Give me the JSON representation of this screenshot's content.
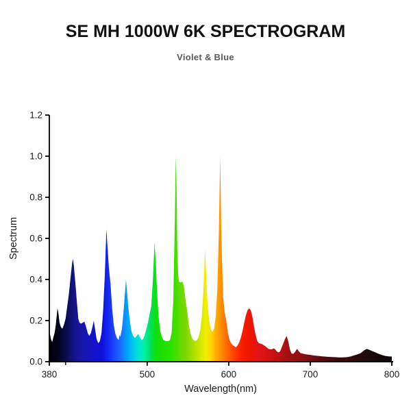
{
  "title": "SE MH 1000W 6K SPECTROGRAM",
  "subtitle": "Violet & Blue",
  "chart_data": {
    "type": "area",
    "title": "SE MH 1000W 6K SPECTROGRAM",
    "subtitle": "Violet & Blue",
    "xlabel": "Wavelength(nm)",
    "ylabel": "Spectrum",
    "xlim": [
      380,
      800
    ],
    "ylim": [
      0.0,
      1.2
    ],
    "x_major_ticks": [
      380,
      500,
      600,
      700,
      800
    ],
    "x_minor_ticks": [
      400
    ],
    "y_ticks": [
      0.0,
      0.2,
      0.4,
      0.6,
      0.8,
      1.0,
      1.2
    ],
    "grid": false,
    "legend": false,
    "fill_style": "spectral-wavelength-gradient",
    "main_peaks": [
      {
        "nm": 390,
        "value": 0.26
      },
      {
        "nm": 409,
        "value": 0.5
      },
      {
        "nm": 435,
        "value": 0.2
      },
      {
        "nm": 450,
        "value": 0.645
      },
      {
        "nm": 474,
        "value": 0.4
      },
      {
        "nm": 509,
        "value": 0.58
      },
      {
        "nm": 535,
        "value": 1.0
      },
      {
        "nm": 543,
        "value": 0.39
      },
      {
        "nm": 571,
        "value": 0.55
      },
      {
        "nm": 590,
        "value": 1.0
      },
      {
        "nm": 625,
        "value": 0.26
      },
      {
        "nm": 671,
        "value": 0.125
      },
      {
        "nm": 770,
        "value": 0.062
      }
    ],
    "points": [
      [
        380,
        0.15
      ],
      [
        382,
        0.11
      ],
      [
        383.5,
        0.095
      ],
      [
        385,
        0.12
      ],
      [
        386.5,
        0.14
      ],
      [
        388,
        0.18
      ],
      [
        390,
        0.26
      ],
      [
        391,
        0.24
      ],
      [
        392.5,
        0.19
      ],
      [
        394,
        0.17
      ],
      [
        396,
        0.16
      ],
      [
        398,
        0.18
      ],
      [
        400,
        0.21
      ],
      [
        402,
        0.27
      ],
      [
        404,
        0.33
      ],
      [
        406,
        0.41
      ],
      [
        408,
        0.48
      ],
      [
        409,
        0.5
      ],
      [
        410,
        0.47
      ],
      [
        412,
        0.38
      ],
      [
        414,
        0.28
      ],
      [
        415.5,
        0.21
      ],
      [
        417,
        0.19
      ],
      [
        419,
        0.185
      ],
      [
        421,
        0.19
      ],
      [
        423,
        0.195
      ],
      [
        425,
        0.17
      ],
      [
        427,
        0.14
      ],
      [
        429,
        0.125
      ],
      [
        431,
        0.14
      ],
      [
        433,
        0.17
      ],
      [
        434.5,
        0.2
      ],
      [
        436,
        0.16
      ],
      [
        438,
        0.11
      ],
      [
        440,
        0.09
      ],
      [
        442,
        0.1
      ],
      [
        444,
        0.14
      ],
      [
        446,
        0.25
      ],
      [
        448,
        0.42
      ],
      [
        450,
        0.645
      ],
      [
        451.5,
        0.55
      ],
      [
        453,
        0.46
      ],
      [
        455,
        0.38
      ],
      [
        457,
        0.26
      ],
      [
        459,
        0.18
      ],
      [
        461,
        0.135
      ],
      [
        463,
        0.115
      ],
      [
        465,
        0.105
      ],
      [
        466,
        0.13
      ],
      [
        467,
        0.12
      ],
      [
        469,
        0.16
      ],
      [
        471,
        0.24
      ],
      [
        473,
        0.345
      ],
      [
        474,
        0.4
      ],
      [
        475.5,
        0.33
      ],
      [
        477,
        0.26
      ],
      [
        479,
        0.19
      ],
      [
        481,
        0.145
      ],
      [
        483,
        0.125
      ],
      [
        485,
        0.115
      ],
      [
        487,
        0.125
      ],
      [
        489,
        0.135
      ],
      [
        491,
        0.12
      ],
      [
        493,
        0.105
      ],
      [
        495,
        0.11
      ],
      [
        497,
        0.13
      ],
      [
        499,
        0.16
      ],
      [
        501,
        0.19
      ],
      [
        503,
        0.23
      ],
      [
        505,
        0.27
      ],
      [
        507,
        0.4
      ],
      [
        509,
        0.58
      ],
      [
        510.5,
        0.48
      ],
      [
        512,
        0.35
      ],
      [
        514,
        0.22
      ],
      [
        516,
        0.15
      ],
      [
        518,
        0.12
      ],
      [
        520,
        0.105
      ],
      [
        523,
        0.1
      ],
      [
        526,
        0.1
      ],
      [
        528,
        0.105
      ],
      [
        530,
        0.14
      ],
      [
        532,
        0.3
      ],
      [
        534,
        0.7
      ],
      [
        535,
        1.0
      ],
      [
        536,
        0.85
      ],
      [
        537,
        0.55
      ],
      [
        538,
        0.42
      ],
      [
        539,
        0.39
      ],
      [
        541,
        0.385
      ],
      [
        543,
        0.39
      ],
      [
        545,
        0.37
      ],
      [
        547,
        0.3
      ],
      [
        549,
        0.25
      ],
      [
        551,
        0.18
      ],
      [
        553,
        0.14
      ],
      [
        555,
        0.115
      ],
      [
        557,
        0.105
      ],
      [
        559,
        0.1
      ],
      [
        561,
        0.105
      ],
      [
        563,
        0.12
      ],
      [
        565,
        0.15
      ],
      [
        567,
        0.22
      ],
      [
        569,
        0.35
      ],
      [
        571,
        0.55
      ],
      [
        572.5,
        0.4
      ],
      [
        574,
        0.28
      ],
      [
        576,
        0.2
      ],
      [
        578,
        0.16
      ],
      [
        580,
        0.145
      ],
      [
        582,
        0.16
      ],
      [
        584,
        0.22
      ],
      [
        586,
        0.35
      ],
      [
        588,
        0.65
      ],
      [
        589.5,
        1.0
      ],
      [
        591,
        0.6
      ],
      [
        593,
        0.32
      ],
      [
        595,
        0.24
      ],
      [
        597,
        0.2
      ],
      [
        599,
        0.14
      ],
      [
        601,
        0.105
      ],
      [
        603,
        0.09
      ],
      [
        605,
        0.08
      ],
      [
        607,
        0.075
      ],
      [
        609,
        0.07
      ],
      [
        611,
        0.08
      ],
      [
        613,
        0.095
      ],
      [
        615,
        0.12
      ],
      [
        617,
        0.15
      ],
      [
        619,
        0.19
      ],
      [
        621,
        0.225
      ],
      [
        623,
        0.25
      ],
      [
        625,
        0.26
      ],
      [
        627,
        0.25
      ],
      [
        629,
        0.22
      ],
      [
        631,
        0.17
      ],
      [
        633,
        0.13
      ],
      [
        635,
        0.1
      ],
      [
        637,
        0.09
      ],
      [
        639,
        0.088
      ],
      [
        641,
        0.085
      ],
      [
        643,
        0.08
      ],
      [
        645,
        0.075
      ],
      [
        647,
        0.068
      ],
      [
        649,
        0.062
      ],
      [
        651,
        0.06
      ],
      [
        653,
        0.06
      ],
      [
        655,
        0.065
      ],
      [
        657,
        0.06
      ],
      [
        659,
        0.05
      ],
      [
        661,
        0.045
      ],
      [
        663,
        0.05
      ],
      [
        665,
        0.07
      ],
      [
        667,
        0.09
      ],
      [
        669,
        0.11
      ],
      [
        671,
        0.125
      ],
      [
        673,
        0.1
      ],
      [
        675,
        0.06
      ],
      [
        677,
        0.04
      ],
      [
        679,
        0.038
      ],
      [
        681,
        0.045
      ],
      [
        683,
        0.058
      ],
      [
        684,
        0.062
      ],
      [
        686,
        0.05
      ],
      [
        688,
        0.042
      ],
      [
        690,
        0.04
      ],
      [
        693,
        0.037
      ],
      [
        696,
        0.035
      ],
      [
        700,
        0.033
      ],
      [
        705,
        0.03
      ],
      [
        710,
        0.028
      ],
      [
        715,
        0.026
      ],
      [
        720,
        0.024
      ],
      [
        725,
        0.023
      ],
      [
        730,
        0.022
      ],
      [
        735,
        0.021
      ],
      [
        740,
        0.021
      ],
      [
        745,
        0.022
      ],
      [
        750,
        0.026
      ],
      [
        755,
        0.032
      ],
      [
        758,
        0.036
      ],
      [
        762,
        0.042
      ],
      [
        766,
        0.055
      ],
      [
        769,
        0.062
      ],
      [
        771,
        0.06
      ],
      [
        774,
        0.055
      ],
      [
        777,
        0.05
      ],
      [
        780,
        0.045
      ],
      [
        784,
        0.038
      ],
      [
        788,
        0.032
      ],
      [
        792,
        0.028
      ],
      [
        796,
        0.026
      ],
      [
        800,
        0.025
      ]
    ],
    "color_stops": [
      [
        380,
        "#000005"
      ],
      [
        390,
        "#04041c"
      ],
      [
        400,
        "#0a0a4a"
      ],
      [
        408,
        "#12127c"
      ],
      [
        415,
        "#16169a"
      ],
      [
        425,
        "#1717b4"
      ],
      [
        435,
        "#1212cc"
      ],
      [
        445,
        "#1010d8"
      ],
      [
        452,
        "#1228f0"
      ],
      [
        460,
        "#1c49ff"
      ],
      [
        468,
        "#1e6cff"
      ],
      [
        475,
        "#00a0ff"
      ],
      [
        482,
        "#00c3f0"
      ],
      [
        490,
        "#00e8d2"
      ],
      [
        497,
        "#00f0a0"
      ],
      [
        504,
        "#00e060"
      ],
      [
        510,
        "#0ee00e"
      ],
      [
        520,
        "#1fe000"
      ],
      [
        530,
        "#2ce000"
      ],
      [
        538,
        "#55dd00"
      ],
      [
        548,
        "#80d800"
      ],
      [
        558,
        "#b0e000"
      ],
      [
        566,
        "#d8e800"
      ],
      [
        572,
        "#f0f000"
      ],
      [
        578,
        "#ffd800"
      ],
      [
        584,
        "#ffae00"
      ],
      [
        590,
        "#ff9100"
      ],
      [
        596,
        "#ff7000"
      ],
      [
        603,
        "#ff5000"
      ],
      [
        610,
        "#ff3000"
      ],
      [
        618,
        "#f81b00"
      ],
      [
        626,
        "#ee1500"
      ],
      [
        634,
        "#e41414"
      ],
      [
        642,
        "#dc1414"
      ],
      [
        650,
        "#d01212"
      ],
      [
        660,
        "#c01010"
      ],
      [
        670,
        "#a81010"
      ],
      [
        680,
        "#961010"
      ],
      [
        690,
        "#8c1010"
      ],
      [
        700,
        "#750e0e"
      ],
      [
        715,
        "#5a0a0a"
      ],
      [
        730,
        "#420808"
      ],
      [
        745,
        "#3a0a0a"
      ],
      [
        760,
        "#280909"
      ],
      [
        770,
        "#1f0b0b"
      ],
      [
        785,
        "#140808"
      ],
      [
        800,
        "#0e0707"
      ]
    ],
    "axis_color": "#000000"
  }
}
